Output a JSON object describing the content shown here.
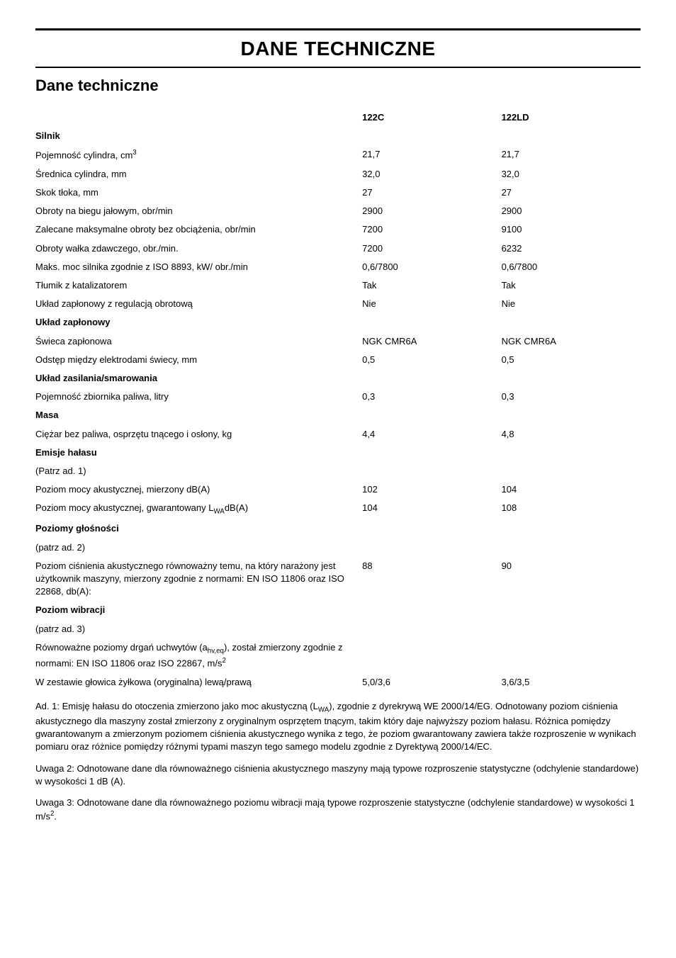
{
  "page_title": "DANE TECHNICZNE",
  "section_title": "Dane techniczne",
  "columns": {
    "c1": "122C",
    "c2": "122LD"
  },
  "sections": [
    {
      "heading": "Silnik",
      "rows": [
        {
          "label_html": "Pojemność cylindra, cm<sup>3</sup>",
          "c1": "21,7",
          "c2": "21,7"
        },
        {
          "label_html": "Średnica cylindra, mm",
          "c1": "32,0",
          "c2": "32,0"
        },
        {
          "label_html": "Skok tłoka, mm",
          "c1": "27",
          "c2": "27"
        },
        {
          "label_html": "Obroty na biegu jałowym, obr/min",
          "c1": "2900",
          "c2": "2900"
        },
        {
          "label_html": "Zalecane maksymalne obroty bez obciążenia, obr/min",
          "c1": "7200",
          "c2": "9100"
        },
        {
          "label_html": "Obroty wałka zdawczego, obr./min.",
          "c1": "7200",
          "c2": "6232"
        },
        {
          "label_html": "Maks. moc silnika zgodnie z ISO 8893, kW/ obr./min",
          "c1": "0,6/7800",
          "c2": "0,6/7800"
        },
        {
          "label_html": "Tłumik z katalizatorem",
          "c1": "Tak",
          "c2": "Tak"
        },
        {
          "label_html": "Układ zapłonowy z regulacją obrotową",
          "c1": "Nie",
          "c2": "Nie"
        }
      ]
    },
    {
      "heading": "Układ zapłonowy",
      "rows": [
        {
          "label_html": "Świeca zapłonowa",
          "c1": "NGK CMR6A",
          "c2": "NGK CMR6A"
        },
        {
          "label_html": "Odstęp między elektrodami świecy, mm",
          "c1": "0,5",
          "c2": "0,5"
        }
      ]
    },
    {
      "heading": "Układ zasilania/smarowania",
      "rows": [
        {
          "label_html": "Pojemność zbiornika paliwa, litry",
          "c1": "0,3",
          "c2": "0,3"
        }
      ]
    },
    {
      "heading": "Masa",
      "rows": [
        {
          "label_html": "Ciężar bez paliwa, osprzętu tnącego i osłony, kg",
          "c1": "4,4",
          "c2": "4,8"
        }
      ]
    },
    {
      "heading": "Emisje hałasu",
      "rows": [
        {
          "label_html": "(Patrz ad. 1)",
          "c1": "",
          "c2": ""
        },
        {
          "label_html": "Poziom mocy akustycznej, mierzony dB(A)",
          "c1": "102",
          "c2": "104"
        },
        {
          "label_html": "Poziom mocy akustycznej, gwarantowany L<sub>WA</sub>dB(A)",
          "c1": "104",
          "c2": "108"
        }
      ]
    },
    {
      "heading": "Poziomy głośności",
      "rows": [
        {
          "label_html": "(patrz ad. 2)",
          "c1": "",
          "c2": ""
        },
        {
          "label_html": "Poziom ciśnienia akustycznego równoważny temu, na który narażony jest użytkownik maszyny, mierzony zgodnie z normami: EN ISO 11806 oraz ISO 22868, db(A):",
          "c1": "88",
          "c2": "90"
        }
      ]
    },
    {
      "heading": "Poziom wibracji",
      "rows": [
        {
          "label_html": "(patrz ad. 3)",
          "c1": "",
          "c2": ""
        },
        {
          "label_html": "Równoważne poziomy drgań uchwytów (a<sub>hv,eq</sub>), został zmierzony zgodnie z normami: EN ISO 11806 oraz ISO 22867, m/s<sup>2</sup>",
          "c1": "",
          "c2": ""
        },
        {
          "label_html": "W zestawie głowica żyłkowa (oryginalna) lewą/prawą",
          "c1": "5,0/3,6",
          "c2": "3,6/3,5"
        }
      ]
    }
  ],
  "notes": [
    "Ad. 1: Emisję hałasu do otoczenia zmierzono jako moc akustyczną (L<sub>WA</sub>), zgodnie z dyrekrywą WE 2000/14/EG. Odnotowany poziom ciśnienia akustycznego dla maszyny został zmierzony z oryginalnym osprzętem tnącym, takim który daje najwyższy poziom hałasu. Różnica pomiędzy gwarantowanym a zmierzonym poziomem ciśnienia akustycznego wynika z tego, że poziom gwarantowany zawiera także rozproszenie w wynikach pomiaru oraz różnice pomiędzy różnymi typami maszyn tego samego modelu zgodnie z Dyrektywą 2000/14/EC.",
    "Uwaga 2: Odnotowane dane dla równoważnego ciśnienia akustycznego maszyny mają typowe rozproszenie statystyczne (odchylenie standardowe) w wysokości 1 dB (A).",
    "Uwaga 3: Odnotowane dane dla równoważnego poziomu wibracji mają typowe rozproszenie statystyczne (odchylenie standardowe) w wysokości 1 m/s<sup>2</sup>."
  ],
  "style": {
    "body_font_size": 13,
    "title_font_size": 28,
    "subtitle_font_size": 22,
    "text_color": "#000000",
    "background": "#ffffff"
  }
}
